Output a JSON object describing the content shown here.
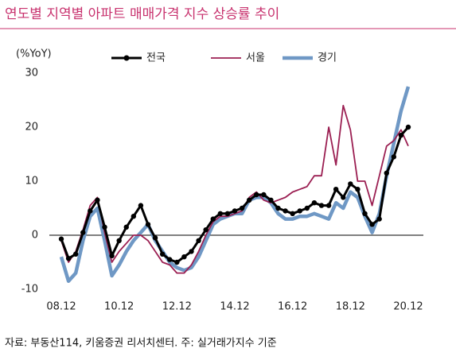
{
  "chart_data": {
    "type": "line",
    "title": "연도별 지역별 아파트 매매가격 지수 상승률 추이",
    "y_label": "(%YoY)",
    "source": "자료: 부동산114, 키움증권 리서치센터. 주: 실거래가지수 기준",
    "categories": [
      "08.12",
      null,
      null,
      null,
      null,
      null,
      null,
      null,
      "10.12",
      null,
      null,
      null,
      null,
      null,
      null,
      null,
      "12.12",
      null,
      null,
      null,
      null,
      null,
      null,
      null,
      "14.12",
      null,
      null,
      null,
      null,
      null,
      null,
      null,
      "16.12",
      null,
      null,
      null,
      null,
      null,
      null,
      null,
      "18.12",
      null,
      null,
      null,
      null,
      null,
      null,
      null,
      "20.12"
    ],
    "series": [
      {
        "name": "전국",
        "color": "#000000",
        "width": 3,
        "markers": true,
        "values": [
          -0.7,
          -4.3,
          -3.5,
          0.5,
          4.5,
          6.5,
          1.5,
          -3.8,
          -1,
          1.5,
          3.5,
          5.5,
          2,
          -0.5,
          -3.5,
          -4.5,
          -5,
          -4,
          -3,
          -1,
          1,
          3,
          4,
          4,
          4.5,
          5,
          6.5,
          7.5,
          7.5,
          6.5,
          5,
          4.5,
          4,
          4.5,
          5,
          6,
          5.5,
          5.5,
          8.5,
          7,
          9.5,
          8.5,
          4,
          2,
          3,
          11.5,
          14.5,
          18.5,
          20
        ]
      },
      {
        "name": "서울",
        "color": "#9b1f52",
        "width": 1.8,
        "markers": false,
        "values": [
          -1,
          -5,
          -3,
          1,
          5.5,
          7,
          0.5,
          -5,
          -3,
          -1.5,
          0,
          0,
          -1,
          -3,
          -5,
          -5.5,
          -7,
          -7,
          -5.5,
          -3,
          0,
          2.5,
          3.5,
          3.5,
          4,
          4.5,
          7,
          8,
          6.5,
          6,
          6.5,
          7,
          8,
          8.5,
          9,
          11,
          11,
          20,
          13,
          24,
          19.5,
          10,
          10,
          5.5,
          11,
          16.5,
          17.5,
          19.5,
          16.5
        ]
      },
      {
        "name": "경기",
        "color": "#6f98c5",
        "width": 4.5,
        "markers": false,
        "values": [
          -4,
          -8.5,
          -7,
          -1,
          3.5,
          5,
          -1,
          -7.5,
          -5.5,
          -3,
          -1,
          0.5,
          2,
          -1,
          -3,
          -5,
          -6,
          -6.5,
          -6,
          -4,
          -1,
          2,
          3,
          3.5,
          4,
          4,
          6.5,
          7,
          7,
          6,
          4,
          3,
          3,
          3.5,
          3.5,
          4,
          3.5,
          3,
          6,
          5,
          8,
          7,
          3.5,
          0.5,
          4,
          11,
          17,
          23,
          27.5
        ]
      }
    ],
    "ylim": [
      -12,
      32
    ],
    "yticks": [
      30,
      20,
      10,
      0,
      -10
    ],
    "grid": false,
    "legend": "top"
  }
}
